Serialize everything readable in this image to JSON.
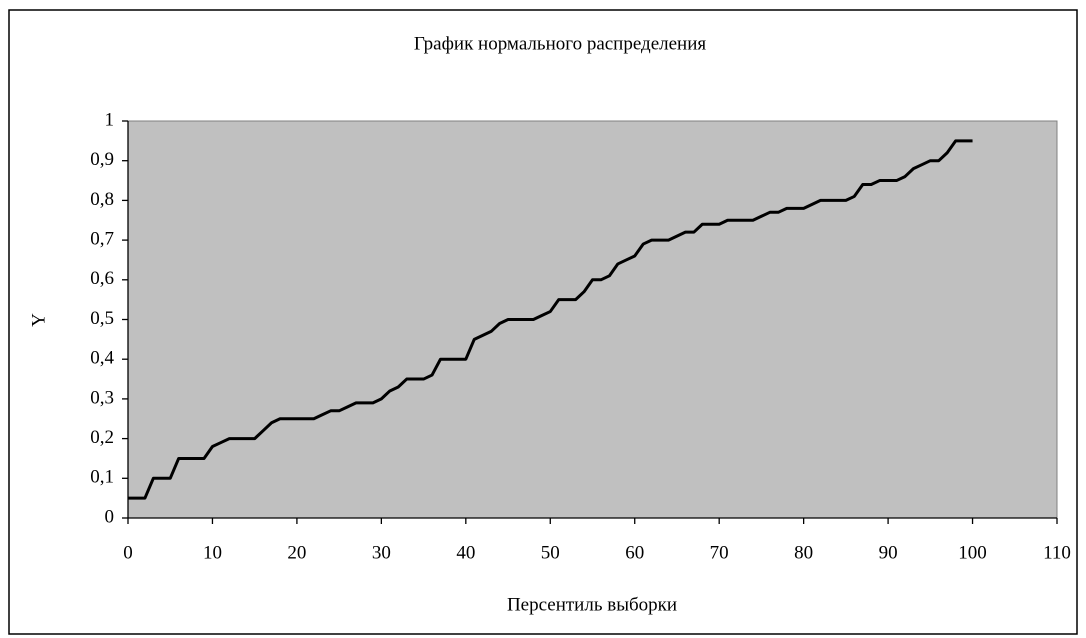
{
  "chart_data": {
    "type": "line",
    "title": "График нормального распределения",
    "x_label": "Персентиль выборки",
    "y_label": "Y",
    "x": [
      0,
      1,
      2,
      3,
      4,
      5,
      6,
      7,
      8,
      9,
      10,
      11,
      12,
      13,
      14,
      15,
      16,
      17,
      18,
      19,
      20,
      21,
      22,
      23,
      24,
      25,
      26,
      27,
      28,
      29,
      30,
      31,
      32,
      33,
      34,
      35,
      36,
      37,
      38,
      39,
      40,
      41,
      42,
      43,
      44,
      45,
      46,
      47,
      48,
      49,
      50,
      51,
      52,
      53,
      54,
      55,
      56,
      57,
      58,
      59,
      60,
      61,
      62,
      63,
      64,
      65,
      66,
      67,
      68,
      69,
      70,
      71,
      72,
      73,
      74,
      75,
      76,
      77,
      78,
      79,
      80,
      81,
      82,
      83,
      84,
      85,
      86,
      87,
      88,
      89,
      90,
      91,
      92,
      93,
      94,
      95,
      96,
      97,
      98,
      99,
      100
    ],
    "series": [
      {
        "name": "Y",
        "color": "#000000",
        "values": [
          0.05,
          0.05,
          0.05,
          0.1,
          0.1,
          0.1,
          0.15,
          0.15,
          0.15,
          0.15,
          0.18,
          0.19,
          0.2,
          0.2,
          0.2,
          0.2,
          0.22,
          0.24,
          0.25,
          0.25,
          0.25,
          0.25,
          0.25,
          0.26,
          0.27,
          0.27,
          0.28,
          0.29,
          0.29,
          0.29,
          0.3,
          0.32,
          0.33,
          0.35,
          0.35,
          0.35,
          0.36,
          0.4,
          0.4,
          0.4,
          0.4,
          0.45,
          0.46,
          0.47,
          0.49,
          0.5,
          0.5,
          0.5,
          0.5,
          0.51,
          0.52,
          0.55,
          0.55,
          0.55,
          0.57,
          0.6,
          0.6,
          0.61,
          0.64,
          0.65,
          0.66,
          0.69,
          0.7,
          0.7,
          0.7,
          0.71,
          0.72,
          0.72,
          0.74,
          0.74,
          0.74,
          0.75,
          0.75,
          0.75,
          0.75,
          0.76,
          0.77,
          0.77,
          0.78,
          0.78,
          0.78,
          0.79,
          0.8,
          0.8,
          0.8,
          0.8,
          0.81,
          0.84,
          0.84,
          0.85,
          0.85,
          0.85,
          0.86,
          0.88,
          0.89,
          0.9,
          0.9,
          0.92,
          0.95,
          0.95,
          0.95
        ]
      }
    ],
    "xlim": [
      0,
      110
    ],
    "xticks": [
      0,
      10,
      20,
      30,
      40,
      50,
      60,
      70,
      80,
      90,
      100,
      110
    ],
    "ylim": [
      0,
      1
    ],
    "yticks": [
      0,
      {
        "value": 0.1,
        "label": "0,1"
      },
      {
        "value": 0.2,
        "label": "0,2"
      },
      {
        "value": 0.3,
        "label": "0,3"
      },
      {
        "value": 0.4,
        "label": "0,4"
      },
      {
        "value": 0.5,
        "label": "0,5"
      },
      {
        "value": 0.6,
        "label": "0,6"
      },
      {
        "value": 0.7,
        "label": "0,7"
      },
      {
        "value": 0.8,
        "label": "0,8"
      },
      {
        "value": 0.9,
        "label": "0,9"
      },
      1
    ],
    "plot_background": "#c0c0c0",
    "grid": false
  }
}
